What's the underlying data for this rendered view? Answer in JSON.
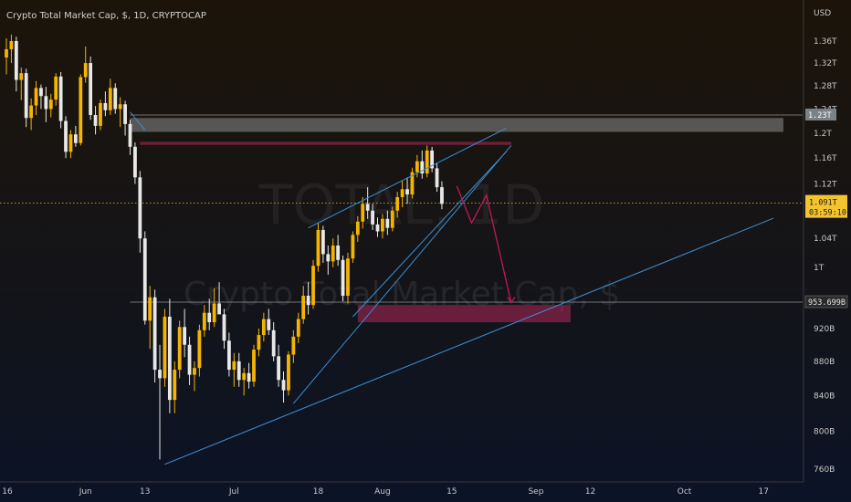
{
  "chart_data": {
    "type": "candlestick",
    "title": "Crypto Total Market Cap, $, 1D, CRYPTOCAP",
    "watermark_symbol": "TOTAL, 1D",
    "watermark_name": "Crypto Total Market Cap, $",
    "currency_label": "USD",
    "y_scale": "log",
    "ylim": [
      745,
      1420
    ],
    "y_ticks": [
      {
        "value": 1360,
        "label": "1.36T"
      },
      {
        "value": 1320,
        "label": "1.32T"
      },
      {
        "value": 1280,
        "label": "1.28T"
      },
      {
        "value": 1240,
        "label": "1.24T"
      },
      {
        "value": 1200,
        "label": "1.2T"
      },
      {
        "value": 1160,
        "label": "1.16T"
      },
      {
        "value": 1120,
        "label": "1.12T"
      },
      {
        "value": 1040,
        "label": "1.04T"
      },
      {
        "value": 1000,
        "label": "1T"
      },
      {
        "value": 920,
        "label": "920B"
      },
      {
        "value": 880,
        "label": "880B"
      },
      {
        "value": 840,
        "label": "840B"
      },
      {
        "value": 800,
        "label": "800B"
      },
      {
        "value": 760,
        "label": "760B"
      }
    ],
    "x_ticks": [
      {
        "day": 0,
        "label": "16"
      },
      {
        "day": 16,
        "label": "Jun"
      },
      {
        "day": 28,
        "label": "13"
      },
      {
        "day": 46,
        "label": "Jul"
      },
      {
        "day": 63,
        "label": "18"
      },
      {
        "day": 76,
        "label": "Aug"
      },
      {
        "day": 90,
        "label": "15"
      },
      {
        "day": 107,
        "label": "Sep"
      },
      {
        "day": 118,
        "label": "12"
      },
      {
        "day": 137,
        "label": "Oct"
      },
      {
        "day": 153,
        "label": "17"
      }
    ],
    "current_price": {
      "value": 1091,
      "label": "1.091T",
      "countdown": "03:59:10"
    },
    "levels": [
      {
        "value": 1230,
        "label": "1.23T"
      },
      {
        "value": 953.699,
        "label": "953.699B"
      }
    ],
    "zones": [
      {
        "name": "resistance",
        "y_from": 1202,
        "y_to": 1225,
        "x_from": 25,
        "x_to": 157,
        "color": "#8c8c8c"
      },
      {
        "name": "supply",
        "y_from": 1181,
        "y_to": 1186,
        "x_from": 27,
        "x_to": 102,
        "color": "#b0285a"
      },
      {
        "name": "demand",
        "y_from": 928,
        "y_to": 950,
        "x_from": 71,
        "x_to": 114,
        "color": "#b0285a"
      }
    ],
    "trendlines": [
      {
        "from": [
          32,
          765
        ],
        "to": [
          155,
          1069
        ]
      },
      {
        "from": [
          58,
          831
        ],
        "to": [
          102,
          1180
        ]
      },
      {
        "from": [
          70,
          935
        ],
        "to": [
          101,
          1170
        ]
      },
      {
        "from": [
          61,
          1055
        ],
        "to": [
          101,
          1208
        ]
      },
      {
        "from": [
          25,
          1235
        ],
        "to": [
          28,
          1205
        ]
      }
    ],
    "projection": [
      [
        91,
        1117
      ],
      [
        94,
        1062
      ],
      [
        97,
        1103
      ],
      [
        102,
        953
      ]
    ],
    "candles": [
      {
        "o": 1330,
        "h": 1365,
        "l": 1300,
        "c": 1345
      },
      {
        "o": 1345,
        "h": 1372,
        "l": 1320,
        "c": 1360
      },
      {
        "o": 1360,
        "h": 1368,
        "l": 1270,
        "c": 1290
      },
      {
        "o": 1290,
        "h": 1312,
        "l": 1255,
        "c": 1302
      },
      {
        "o": 1302,
        "h": 1310,
        "l": 1210,
        "c": 1225
      },
      {
        "o": 1225,
        "h": 1258,
        "l": 1205,
        "c": 1246
      },
      {
        "o": 1246,
        "h": 1288,
        "l": 1230,
        "c": 1276
      },
      {
        "o": 1276,
        "h": 1282,
        "l": 1240,
        "c": 1262
      },
      {
        "o": 1262,
        "h": 1278,
        "l": 1218,
        "c": 1240
      },
      {
        "o": 1240,
        "h": 1266,
        "l": 1226,
        "c": 1256
      },
      {
        "o": 1256,
        "h": 1302,
        "l": 1246,
        "c": 1296
      },
      {
        "o": 1296,
        "h": 1304,
        "l": 1208,
        "c": 1220
      },
      {
        "o": 1220,
        "h": 1228,
        "l": 1160,
        "c": 1170
      },
      {
        "o": 1170,
        "h": 1205,
        "l": 1160,
        "c": 1198
      },
      {
        "o": 1198,
        "h": 1212,
        "l": 1178,
        "c": 1184
      },
      {
        "o": 1184,
        "h": 1300,
        "l": 1180,
        "c": 1295
      },
      {
        "o": 1295,
        "h": 1350,
        "l": 1285,
        "c": 1320
      },
      {
        "o": 1320,
        "h": 1332,
        "l": 1222,
        "c": 1230
      },
      {
        "o": 1230,
        "h": 1245,
        "l": 1198,
        "c": 1212
      },
      {
        "o": 1212,
        "h": 1256,
        "l": 1205,
        "c": 1250
      },
      {
        "o": 1250,
        "h": 1270,
        "l": 1228,
        "c": 1238
      },
      {
        "o": 1238,
        "h": 1292,
        "l": 1230,
        "c": 1276
      },
      {
        "o": 1276,
        "h": 1284,
        "l": 1232,
        "c": 1240
      },
      {
        "o": 1240,
        "h": 1260,
        "l": 1210,
        "c": 1248
      },
      {
        "o": 1248,
        "h": 1254,
        "l": 1196,
        "c": 1215
      },
      {
        "o": 1215,
        "h": 1222,
        "l": 1165,
        "c": 1178
      },
      {
        "o": 1178,
        "h": 1185,
        "l": 1120,
        "c": 1130
      },
      {
        "o": 1130,
        "h": 1140,
        "l": 1020,
        "c": 1040
      },
      {
        "o": 1040,
        "h": 1050,
        "l": 925,
        "c": 930
      },
      {
        "o": 930,
        "h": 975,
        "l": 895,
        "c": 960
      },
      {
        "o": 960,
        "h": 970,
        "l": 855,
        "c": 870
      },
      {
        "o": 870,
        "h": 900,
        "l": 770,
        "c": 860
      },
      {
        "o": 860,
        "h": 945,
        "l": 850,
        "c": 935
      },
      {
        "o": 935,
        "h": 958,
        "l": 820,
        "c": 835
      },
      {
        "o": 835,
        "h": 880,
        "l": 820,
        "c": 870
      },
      {
        "o": 870,
        "h": 930,
        "l": 860,
        "c": 922
      },
      {
        "o": 922,
        "h": 945,
        "l": 885,
        "c": 900
      },
      {
        "o": 900,
        "h": 910,
        "l": 852,
        "c": 864
      },
      {
        "o": 864,
        "h": 880,
        "l": 845,
        "c": 872
      },
      {
        "o": 872,
        "h": 925,
        "l": 862,
        "c": 918
      },
      {
        "o": 918,
        "h": 950,
        "l": 910,
        "c": 940
      },
      {
        "o": 940,
        "h": 958,
        "l": 918,
        "c": 928
      },
      {
        "o": 928,
        "h": 972,
        "l": 922,
        "c": 952
      },
      {
        "o": 952,
        "h": 980,
        "l": 942,
        "c": 938
      },
      {
        "o": 938,
        "h": 945,
        "l": 895,
        "c": 905
      },
      {
        "o": 905,
        "h": 915,
        "l": 862,
        "c": 870
      },
      {
        "o": 870,
        "h": 890,
        "l": 850,
        "c": 880
      },
      {
        "o": 880,
        "h": 890,
        "l": 850,
        "c": 858
      },
      {
        "o": 858,
        "h": 872,
        "l": 840,
        "c": 866
      },
      {
        "o": 866,
        "h": 878,
        "l": 848,
        "c": 856
      },
      {
        "o": 856,
        "h": 900,
        "l": 850,
        "c": 894
      },
      {
        "o": 894,
        "h": 920,
        "l": 886,
        "c": 912
      },
      {
        "o": 912,
        "h": 940,
        "l": 904,
        "c": 932
      },
      {
        "o": 932,
        "h": 945,
        "l": 912,
        "c": 918
      },
      {
        "o": 918,
        "h": 928,
        "l": 880,
        "c": 886
      },
      {
        "o": 886,
        "h": 900,
        "l": 850,
        "c": 858
      },
      {
        "o": 858,
        "h": 868,
        "l": 832,
        "c": 846
      },
      {
        "o": 846,
        "h": 892,
        "l": 840,
        "c": 888
      },
      {
        "o": 888,
        "h": 918,
        "l": 878,
        "c": 910
      },
      {
        "o": 910,
        "h": 940,
        "l": 902,
        "c": 932
      },
      {
        "o": 932,
        "h": 975,
        "l": 926,
        "c": 962
      },
      {
        "o": 962,
        "h": 980,
        "l": 938,
        "c": 950
      },
      {
        "o": 950,
        "h": 1010,
        "l": 945,
        "c": 1002
      },
      {
        "o": 1002,
        "h": 1062,
        "l": 994,
        "c": 1052
      },
      {
        "o": 1052,
        "h": 1058,
        "l": 1006,
        "c": 1018
      },
      {
        "o": 1018,
        "h": 1030,
        "l": 990,
        "c": 1008
      },
      {
        "o": 1008,
        "h": 1040,
        "l": 1000,
        "c": 1030
      },
      {
        "o": 1030,
        "h": 1045,
        "l": 1002,
        "c": 1010
      },
      {
        "o": 1010,
        "h": 1016,
        "l": 955,
        "c": 962
      },
      {
        "o": 962,
        "h": 1020,
        "l": 952,
        "c": 1012
      },
      {
        "o": 1012,
        "h": 1050,
        "l": 1006,
        "c": 1045
      },
      {
        "o": 1045,
        "h": 1072,
        "l": 1035,
        "c": 1064
      },
      {
        "o": 1064,
        "h": 1100,
        "l": 1054,
        "c": 1090
      },
      {
        "o": 1090,
        "h": 1115,
        "l": 1068,
        "c": 1080
      },
      {
        "o": 1080,
        "h": 1090,
        "l": 1052,
        "c": 1060
      },
      {
        "o": 1060,
        "h": 1070,
        "l": 1042,
        "c": 1050
      },
      {
        "o": 1050,
        "h": 1075,
        "l": 1040,
        "c": 1068
      },
      {
        "o": 1068,
        "h": 1080,
        "l": 1045,
        "c": 1055
      },
      {
        "o": 1055,
        "h": 1086,
        "l": 1050,
        "c": 1080
      },
      {
        "o": 1080,
        "h": 1108,
        "l": 1070,
        "c": 1100
      },
      {
        "o": 1100,
        "h": 1125,
        "l": 1085,
        "c": 1112
      },
      {
        "o": 1112,
        "h": 1130,
        "l": 1090,
        "c": 1104
      },
      {
        "o": 1104,
        "h": 1145,
        "l": 1098,
        "c": 1138
      },
      {
        "o": 1138,
        "h": 1165,
        "l": 1130,
        "c": 1155
      },
      {
        "o": 1155,
        "h": 1172,
        "l": 1128,
        "c": 1136
      },
      {
        "o": 1136,
        "h": 1180,
        "l": 1130,
        "c": 1172
      },
      {
        "o": 1172,
        "h": 1178,
        "l": 1138,
        "c": 1144
      },
      {
        "o": 1144,
        "h": 1152,
        "l": 1108,
        "c": 1115
      },
      {
        "o": 1115,
        "h": 1124,
        "l": 1082,
        "c": 1090
      }
    ]
  }
}
